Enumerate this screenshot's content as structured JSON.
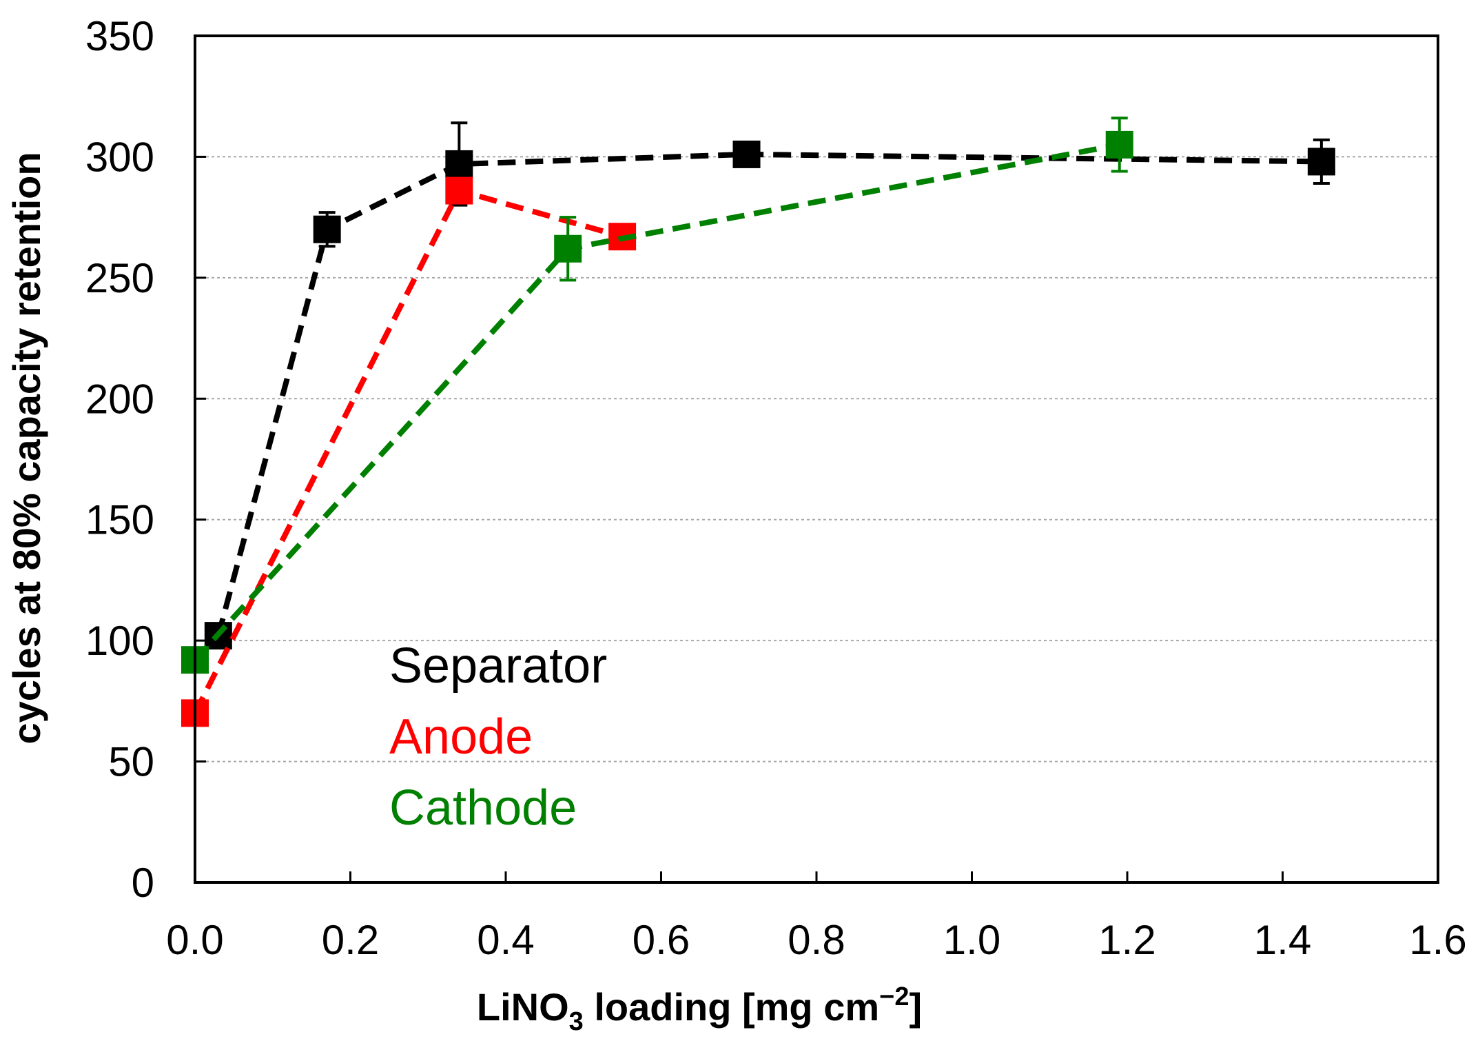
{
  "chart_data": {
    "type": "line",
    "title": "",
    "xlabel": {
      "prefix": "LiNO",
      "subscript": "3",
      "middle": " loading  [mg cm",
      "superscript": "−2",
      "suffix": "]"
    },
    "ylabel": "cycles at 80% capacity retention",
    "xlim": [
      0,
      1.6
    ],
    "ylim": [
      0,
      350
    ],
    "x_ticks": [
      0,
      0.2,
      0.4,
      0.6,
      0.8,
      1.0,
      1.2,
      1.4,
      1.6
    ],
    "x_tick_labels": [
      "0.0",
      "0.2",
      "0.4",
      "0.6",
      "0.8",
      "1.0",
      "1.2",
      "1.4",
      "1.6"
    ],
    "y_ticks": [
      0,
      50,
      100,
      150,
      200,
      250,
      300,
      350
    ],
    "y_tick_labels": [
      "0",
      "50",
      "100",
      "150",
      "200",
      "250",
      "300",
      "350"
    ],
    "grid": "horizontal dashed",
    "legend_position": "bottom-left",
    "series": [
      {
        "name": "Separator",
        "color": "#000000",
        "x": [
          0.03,
          0.17,
          0.34,
          0.71,
          1.45
        ],
        "y": [
          102,
          270,
          297,
          301,
          298
        ],
        "error": [
          3,
          7,
          17,
          5,
          9
        ]
      },
      {
        "name": "Anode",
        "color": "#ff0000",
        "x": [
          0.0,
          0.34,
          0.55
        ],
        "y": [
          70,
          286,
          267
        ],
        "error": [
          0,
          4,
          0
        ]
      },
      {
        "name": "Cathode",
        "color": "#008000",
        "x": [
          0.0,
          0.48,
          1.19
        ],
        "y": [
          92,
          262,
          305
        ],
        "error": [
          0,
          13,
          11
        ]
      }
    ]
  }
}
